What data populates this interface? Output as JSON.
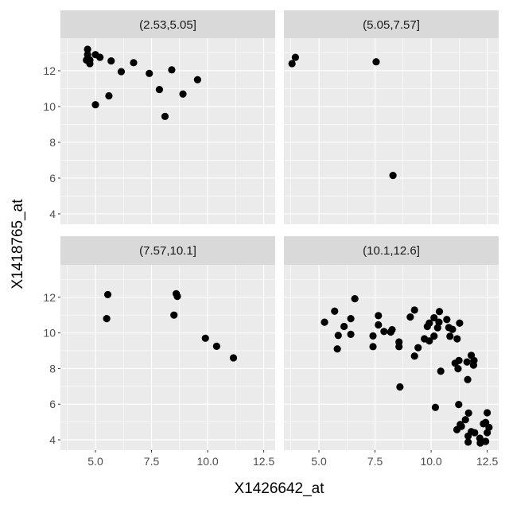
{
  "chart_data": {
    "type": "scatter",
    "xlabel": "X1426642_at",
    "ylabel": "X1418765_at",
    "xlim": [
      3.44,
      13.01
    ],
    "ylim": [
      3.42,
      13.82
    ],
    "x_ticks": [
      5.0,
      7.5,
      10.0,
      12.5
    ],
    "x_tick_labels": [
      "5.0",
      "7.5",
      "10.0",
      "12.5"
    ],
    "y_ticks": [
      4,
      6,
      8,
      10,
      12
    ],
    "y_tick_labels": [
      "4",
      "6",
      "8",
      "10",
      "12"
    ],
    "grid": true,
    "point_color": "#000000",
    "panel_bg": "#ebebeb",
    "strip_bg": "#d9d9d9",
    "facets": [
      {
        "label": "(2.53,5.05]",
        "points": [
          [
            4.65,
            13.2
          ],
          [
            4.65,
            12.9
          ],
          [
            4.6,
            12.6
          ],
          [
            4.75,
            12.4
          ],
          [
            4.75,
            12.6
          ],
          [
            5.0,
            12.9
          ],
          [
            5.2,
            12.75
          ],
          [
            5.7,
            12.55
          ],
          [
            6.15,
            11.95
          ],
          [
            6.7,
            12.45
          ],
          [
            7.4,
            11.85
          ],
          [
            7.85,
            10.95
          ],
          [
            8.4,
            12.05
          ],
          [
            8.1,
            9.45
          ],
          [
            8.9,
            10.7
          ],
          [
            9.55,
            11.5
          ],
          [
            5.6,
            10.6
          ],
          [
            5.0,
            10.1
          ]
        ]
      },
      {
        "label": "(5.05,7.57]",
        "points": [
          [
            3.8,
            12.4
          ],
          [
            3.95,
            12.75
          ],
          [
            7.55,
            12.5
          ],
          [
            8.3,
            6.15
          ]
        ]
      },
      {
        "label": "(7.57,10.1]",
        "points": [
          [
            5.55,
            12.15
          ],
          [
            5.5,
            10.8
          ],
          [
            8.6,
            12.2
          ],
          [
            8.65,
            12.05
          ],
          [
            8.5,
            11.0
          ],
          [
            9.9,
            9.7
          ],
          [
            10.4,
            9.25
          ],
          [
            11.15,
            8.6
          ]
        ]
      },
      {
        "label": "(10.1,12.6]",
        "points": [
          [
            5.25,
            10.6
          ],
          [
            5.7,
            11.22
          ],
          [
            6.6,
            11.92
          ],
          [
            6.42,
            10.8
          ],
          [
            6.12,
            10.36
          ],
          [
            5.86,
            9.86
          ],
          [
            6.42,
            9.92
          ],
          [
            5.82,
            9.1
          ],
          [
            7.65,
            10.97
          ],
          [
            7.65,
            10.45
          ],
          [
            7.41,
            9.83
          ],
          [
            7.41,
            9.23
          ],
          [
            7.9,
            10.08
          ],
          [
            8.26,
            10.18
          ],
          [
            8.2,
            10.05
          ],
          [
            8.57,
            9.49
          ],
          [
            8.57,
            9.23
          ],
          [
            8.61,
            6.97
          ],
          [
            9.07,
            10.89
          ],
          [
            9.26,
            11.28
          ],
          [
            9.42,
            9.17
          ],
          [
            9.26,
            8.7
          ],
          [
            9.7,
            9.67
          ],
          [
            9.92,
            9.55
          ],
          [
            9.83,
            10.36
          ],
          [
            9.92,
            10.55
          ],
          [
            10.13,
            10.85
          ],
          [
            10.37,
            11.2
          ],
          [
            10.13,
            9.82
          ],
          [
            10.29,
            10.29
          ],
          [
            10.35,
            10.6
          ],
          [
            10.7,
            10.75
          ],
          [
            10.79,
            10.3
          ],
          [
            10.95,
            10.2
          ],
          [
            10.84,
            9.81
          ],
          [
            11.16,
            9.67
          ],
          [
            11.27,
            10.55
          ],
          [
            10.43,
            7.85
          ],
          [
            11.07,
            8.3
          ],
          [
            11.24,
            8.45
          ],
          [
            11.2,
            7.99
          ],
          [
            11.6,
            8.37
          ],
          [
            11.79,
            8.74
          ],
          [
            11.91,
            8.45
          ],
          [
            11.89,
            8.19
          ],
          [
            11.63,
            7.38
          ],
          [
            11.23,
            5.98
          ],
          [
            10.19,
            5.82
          ],
          [
            11.67,
            5.5
          ],
          [
            11.53,
            5.13
          ],
          [
            11.3,
            4.86
          ],
          [
            11.15,
            4.57
          ],
          [
            11.35,
            4.76
          ],
          [
            11.79,
            4.46
          ],
          [
            11.65,
            4.21
          ],
          [
            11.65,
            3.87
          ],
          [
            11.94,
            4.4
          ],
          [
            12.17,
            4.09
          ],
          [
            12.19,
            3.82
          ],
          [
            12.43,
            3.91
          ],
          [
            12.5,
            4.4
          ],
          [
            12.33,
            4.9
          ],
          [
            12.58,
            4.7
          ],
          [
            12.5,
            5.52
          ],
          [
            12.43,
            4.97
          ]
        ]
      }
    ]
  }
}
